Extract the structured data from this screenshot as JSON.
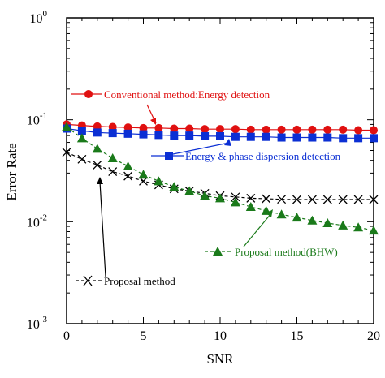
{
  "chart_data": {
    "type": "line",
    "xlabel": "SNR",
    "ylabel": "Error Rate",
    "xlim": [
      0,
      20
    ],
    "ylim": [
      0.001,
      1
    ],
    "yscale": "log",
    "x_ticks": [
      "0",
      "5",
      "10",
      "15",
      "20"
    ],
    "y_ticks": [
      {
        "base": "10",
        "exp": "0",
        "value": 1
      },
      {
        "base": "10",
        "exp": "-1",
        "value": 0.1
      },
      {
        "base": "10",
        "exp": "-2",
        "value": 0.01
      },
      {
        "base": "10",
        "exp": "-3",
        "value": 0.001
      }
    ],
    "grid": false,
    "x": [
      0,
      1,
      2,
      3,
      4,
      5,
      6,
      7,
      8,
      9,
      10,
      11,
      12,
      13,
      14,
      15,
      16,
      17,
      18,
      19,
      20
    ],
    "series": [
      {
        "name": "Conventional method:Energy detection",
        "color": "#e01010",
        "marker": "circle",
        "line": "solid",
        "values": [
          0.09,
          0.088,
          0.086,
          0.085,
          0.084,
          0.083,
          0.083,
          0.082,
          0.082,
          0.081,
          0.081,
          0.081,
          0.08,
          0.08,
          0.08,
          0.08,
          0.08,
          0.08,
          0.08,
          0.079,
          0.079
        ]
      },
      {
        "name": "Energy & phase dispersion detection",
        "color": "#0b2fd4",
        "marker": "square",
        "line": "solid",
        "values": [
          0.082,
          0.078,
          0.075,
          0.074,
          0.073,
          0.072,
          0.071,
          0.07,
          0.07,
          0.069,
          0.069,
          0.068,
          0.068,
          0.068,
          0.067,
          0.067,
          0.067,
          0.067,
          0.066,
          0.066,
          0.066
        ]
      },
      {
        "name": "Proposal method",
        "color": "#000000",
        "marker": "x",
        "line": "dashed",
        "values": [
          0.048,
          0.041,
          0.036,
          0.031,
          0.028,
          0.025,
          0.023,
          0.021,
          0.02,
          0.019,
          0.018,
          0.0175,
          0.017,
          0.0168,
          0.0166,
          0.0165,
          0.0165,
          0.0165,
          0.0165,
          0.0165,
          0.0165
        ]
      },
      {
        "name": "Proposal method(BHW)",
        "color": "#1a7a1a",
        "marker": "triangle",
        "line": "dashed",
        "values": [
          0.085,
          0.066,
          0.052,
          0.042,
          0.035,
          0.029,
          0.025,
          0.022,
          0.02,
          0.018,
          0.017,
          0.0155,
          0.014,
          0.0128,
          0.0118,
          0.011,
          0.0103,
          0.0097,
          0.0092,
          0.0088,
          0.0082
        ]
      }
    ],
    "annotations": [
      {
        "series": 0,
        "text": "Conventional method:Energy detection"
      },
      {
        "series": 1,
        "text": "Energy & phase dispersion detection"
      },
      {
        "series": 2,
        "text": "Proposal method"
      },
      {
        "series": 3,
        "text": "Proposal method(BHW)"
      }
    ]
  }
}
